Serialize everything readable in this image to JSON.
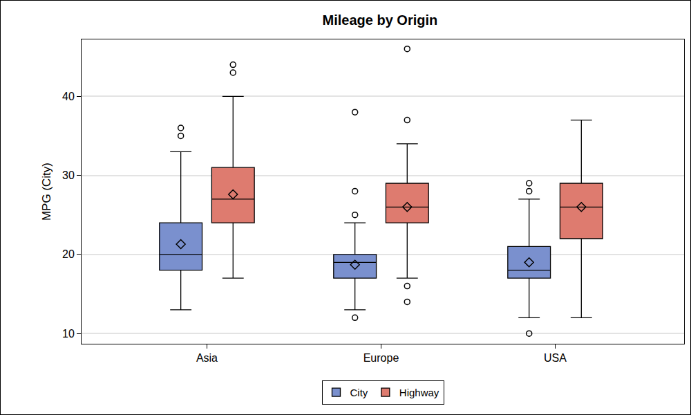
{
  "chart_data": {
    "type": "box",
    "title": "Mileage by Origin",
    "y_label": "MPG (City)",
    "categories": [
      "Asia",
      "Europe",
      "USA"
    ],
    "ylim": [
      8.7,
      47.2
    ],
    "yticks": [
      10,
      20,
      30,
      40
    ],
    "grid": true,
    "legend": "bottom",
    "series": [
      {
        "name": "City",
        "color": "#7A90CE",
        "whisker_low": [
          13,
          13,
          12
        ],
        "q1": [
          18,
          17,
          17
        ],
        "median": [
          20,
          19,
          18
        ],
        "q3": [
          24,
          20,
          21
        ],
        "whisker_high": [
          33,
          24,
          27
        ],
        "mean": [
          21.3,
          18.7,
          19
        ],
        "outliers": [
          [
            35,
            36
          ],
          [
            12,
            25,
            28,
            38
          ],
          [
            10,
            28,
            29
          ]
        ]
      },
      {
        "name": "Highway",
        "color": "#DE7B6F",
        "whisker_low": [
          17,
          17,
          12
        ],
        "q1": [
          24,
          24,
          22
        ],
        "median": [
          27,
          26,
          26
        ],
        "q3": [
          31,
          29,
          29
        ],
        "whisker_high": [
          40,
          34,
          37
        ],
        "mean": [
          27.6,
          26,
          26
        ],
        "outliers": [
          [
            43,
            44
          ],
          [
            14,
            16,
            37,
            46
          ],
          []
        ]
      }
    ]
  }
}
